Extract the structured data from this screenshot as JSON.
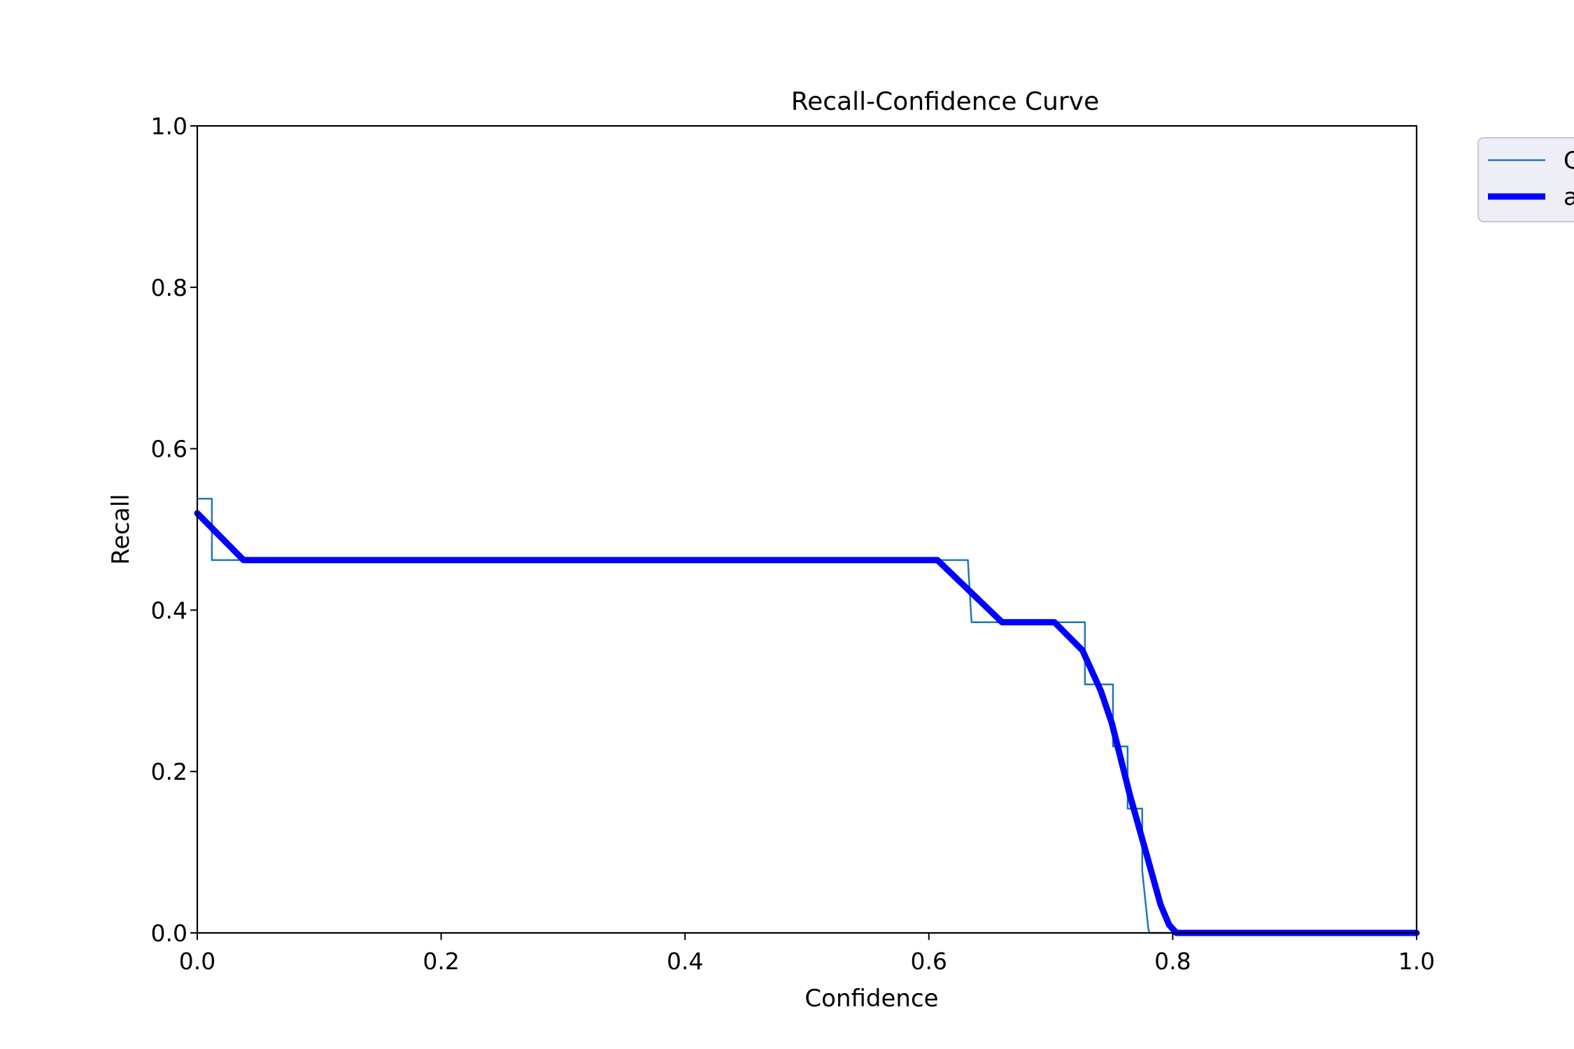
{
  "chart_data": {
    "type": "line",
    "title": "Recall-Confidence Curve",
    "xlabel": "Confidence",
    "ylabel": "Recall",
    "xlim": [
      0,
      1
    ],
    "ylim": [
      0,
      1
    ],
    "xticks": [
      "0.0",
      "0.2",
      "0.4",
      "0.6",
      "0.8",
      "1.0"
    ],
    "yticks": [
      "0.0",
      "0.2",
      "0.4",
      "0.6",
      "0.8",
      "1.0"
    ],
    "grid": false,
    "legend_position": "outside-top-right",
    "series": [
      {
        "name": "C",
        "color": "#1f77b4",
        "style": "thin",
        "x": [
          0.0,
          0.012,
          0.012,
          0.632,
          0.632,
          0.635,
          0.635,
          0.728,
          0.728,
          0.751,
          0.751,
          0.763,
          0.763,
          0.775,
          0.775,
          0.78,
          0.781,
          1.0
        ],
        "y": [
          0.538,
          0.538,
          0.462,
          0.462,
          0.462,
          0.385,
          0.385,
          0.385,
          0.308,
          0.308,
          0.231,
          0.231,
          0.154,
          0.154,
          0.077,
          0.005,
          0.0,
          0.0
        ]
      },
      {
        "name": "a",
        "color": "#0000ff",
        "style": "thick",
        "x": [
          0.0,
          0.038,
          0.607,
          0.66,
          0.703,
          0.726,
          0.741,
          0.75,
          0.765,
          0.778,
          0.79,
          0.797,
          0.803,
          1.0
        ],
        "y": [
          0.52,
          0.462,
          0.462,
          0.385,
          0.385,
          0.35,
          0.3,
          0.26,
          0.17,
          0.1,
          0.035,
          0.01,
          0.0,
          0.0
        ]
      }
    ]
  }
}
